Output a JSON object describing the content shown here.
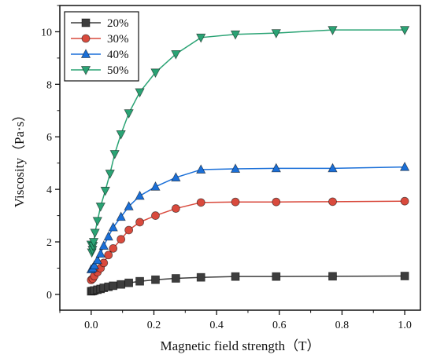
{
  "chart_data": {
    "type": "line",
    "title": "",
    "xlabel": "Magnetic field strength（T）",
    "ylabel": "Viscosity（Pa·s）",
    "xlim": [
      -0.1,
      1.05
    ],
    "ylim": [
      -0.6,
      11.0
    ],
    "xticks": [
      0.0,
      0.2,
      0.4,
      0.6,
      0.8,
      1.0
    ],
    "xtick_labels": [
      "0.0",
      "0.2",
      "0.4",
      "0.6",
      "0.8",
      "1.0"
    ],
    "yticks": [
      0,
      2,
      4,
      6,
      8,
      10
    ],
    "ytick_labels": [
      "0",
      "2",
      "4",
      "6",
      "8",
      "10"
    ],
    "grid": false,
    "legend_position": "top-left",
    "series": [
      {
        "name": "20%",
        "color": "#3d3d3d",
        "marker": "square",
        "x": [
          0.0,
          0.005,
          0.01,
          0.02,
          0.03,
          0.04,
          0.055,
          0.07,
          0.095,
          0.12,
          0.155,
          0.205,
          0.27,
          0.35,
          0.46,
          0.59,
          0.77,
          1.0
        ],
        "y": [
          0.12,
          0.13,
          0.15,
          0.18,
          0.21,
          0.25,
          0.29,
          0.33,
          0.38,
          0.44,
          0.5,
          0.56,
          0.61,
          0.65,
          0.68,
          0.68,
          0.69,
          0.7
        ]
      },
      {
        "name": "30%",
        "color": "#d94a3d",
        "marker": "circle",
        "x": [
          0.0,
          0.005,
          0.01,
          0.02,
          0.03,
          0.04,
          0.055,
          0.07,
          0.095,
          0.12,
          0.155,
          0.205,
          0.27,
          0.35,
          0.46,
          0.59,
          0.77,
          1.0
        ],
        "y": [
          0.55,
          0.6,
          0.7,
          0.85,
          1.0,
          1.2,
          1.5,
          1.75,
          2.1,
          2.45,
          2.75,
          3.0,
          3.27,
          3.5,
          3.52,
          3.52,
          3.53,
          3.55
        ]
      },
      {
        "name": "40%",
        "color": "#1a6fd8",
        "marker": "triangle-up",
        "x": [
          0.0,
          0.005,
          0.01,
          0.02,
          0.03,
          0.04,
          0.055,
          0.07,
          0.095,
          0.12,
          0.155,
          0.205,
          0.27,
          0.35,
          0.46,
          0.59,
          0.77,
          1.0
        ],
        "y": [
          0.95,
          1.0,
          1.1,
          1.3,
          1.55,
          1.85,
          2.2,
          2.55,
          2.95,
          3.35,
          3.75,
          4.1,
          4.45,
          4.75,
          4.78,
          4.8,
          4.8,
          4.85
        ]
      },
      {
        "name": "50%",
        "color": "#2aa374",
        "marker": "triangle-down",
        "x": [
          0.0,
          0.002,
          0.004,
          0.006,
          0.008,
          0.012,
          0.02,
          0.03,
          0.045,
          0.06,
          0.075,
          0.095,
          0.12,
          0.155,
          0.205,
          0.27,
          0.35,
          0.46,
          0.59,
          0.77,
          1.0
        ],
        "y": [
          1.9,
          1.6,
          1.7,
          1.85,
          2.0,
          2.35,
          2.8,
          3.35,
          3.95,
          4.6,
          5.35,
          6.1,
          6.9,
          7.7,
          8.45,
          9.15,
          9.78,
          9.9,
          9.95,
          10.07,
          10.07
        ]
      }
    ]
  }
}
